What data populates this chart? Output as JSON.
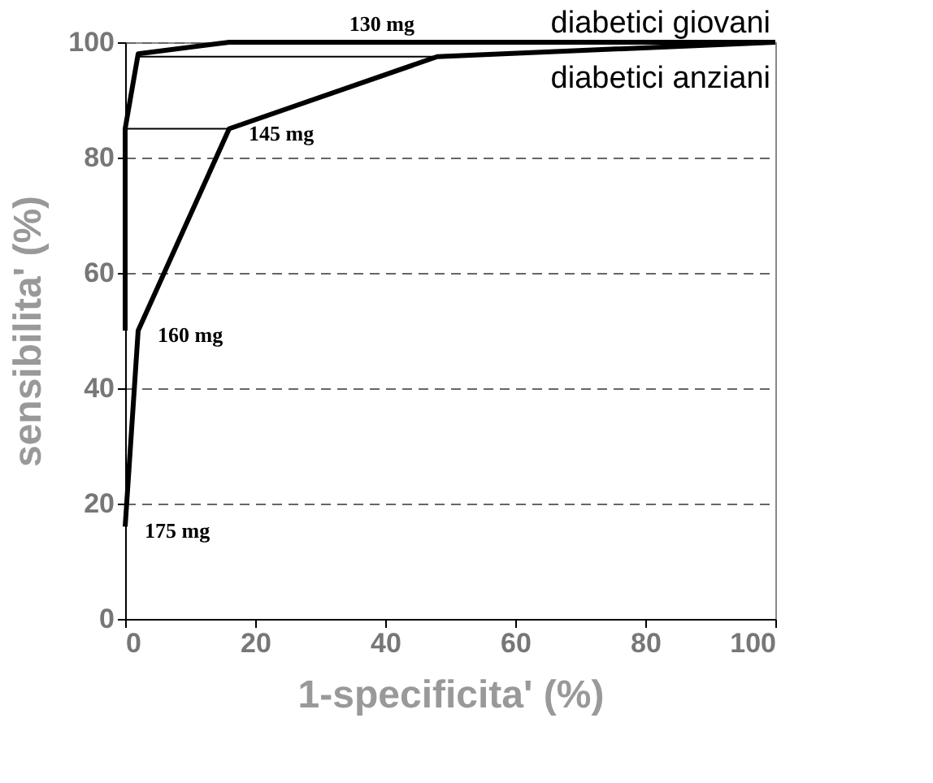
{
  "chart_data": {
    "type": "line",
    "xlabel": "1-specificita' (%)",
    "ylabel": "sensibilita' (%)",
    "xlim": [
      0,
      100
    ],
    "ylim": [
      0,
      100
    ],
    "xticks": [
      0,
      20,
      40,
      60,
      80,
      100
    ],
    "yticks": [
      0,
      20,
      40,
      60,
      80,
      100
    ],
    "grid": "y",
    "marker": "none",
    "line_style": "solid",
    "series": [
      {
        "name": "diabetici giovani",
        "color": "#000000",
        "x": [
          0,
          0,
          2,
          16,
          100
        ],
        "values": [
          50,
          85,
          98,
          100,
          100
        ]
      },
      {
        "name": "diabetici anziani",
        "color": "#000000",
        "x": [
          0,
          2,
          16,
          48,
          100
        ],
        "values": [
          16,
          50,
          85,
          97.5,
          100
        ]
      },
      {
        "color": "#000000",
        "x": [
          0,
          16
        ],
        "values": [
          85,
          85
        ]
      },
      {
        "color": "#000000",
        "x": [
          2,
          48
        ],
        "values": [
          97.5,
          97.5
        ]
      }
    ],
    "annotations": [
      {
        "text": "130 mg",
        "x": 48,
        "y": 97.5
      },
      {
        "text": "145 mg",
        "x": 16,
        "y": 85
      },
      {
        "text": "160 mg",
        "x": 2,
        "y": 50
      },
      {
        "text": "175 mg",
        "x": 0,
        "y": 16
      }
    ]
  }
}
